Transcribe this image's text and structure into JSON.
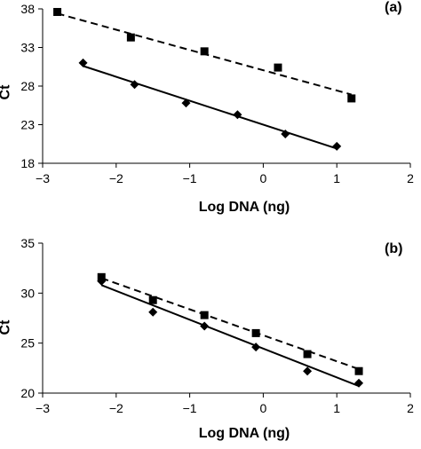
{
  "chart_data": [
    {
      "type": "scatter",
      "panel_label": "(a)",
      "xlabel": "Log DNA (ng)",
      "ylabel": "Ct",
      "xlim": [
        -3,
        2
      ],
      "ylim": [
        18,
        38
      ],
      "xticks": [
        -3,
        -2,
        -1,
        0,
        1,
        2
      ],
      "yticks": [
        18,
        23,
        28,
        33,
        38
      ],
      "tick_labels_x": [
        "−3",
        "−2",
        "−1",
        "0",
        "1",
        "2"
      ],
      "tick_labels_y": [
        "18",
        "23",
        "28",
        "33",
        "38"
      ],
      "grid": false,
      "series": [
        {
          "marker": "square",
          "line": "dashed",
          "x": [
            -2.8,
            -1.8,
            -0.8,
            0.2,
            1.2
          ],
          "y": [
            37.6,
            34.3,
            32.5,
            30.4,
            26.4
          ],
          "fit": [
            [
              -2.8,
              37.4
            ],
            [
              1.2,
              26.9
            ]
          ]
        },
        {
          "marker": "diamond",
          "line": "solid",
          "x": [
            -2.45,
            -1.75,
            -1.05,
            -0.35,
            0.3,
            1.0
          ],
          "y": [
            31.0,
            28.2,
            25.8,
            24.3,
            21.8,
            20.2
          ],
          "fit": [
            [
              -2.45,
              30.6
            ],
            [
              1.0,
              19.9
            ]
          ]
        }
      ]
    },
    {
      "type": "scatter",
      "panel_label": "(b)",
      "xlabel": "Log DNA (ng)",
      "ylabel": "Ct",
      "xlim": [
        -3,
        2
      ],
      "ylim": [
        20,
        35
      ],
      "xticks": [
        -3,
        -2,
        -1,
        0,
        1,
        2
      ],
      "yticks": [
        20,
        25,
        30,
        35
      ],
      "tick_labels_x": [
        "−3",
        "−2",
        "−1",
        "0",
        "1",
        "2"
      ],
      "tick_labels_y": [
        "20",
        "25",
        "30",
        "35"
      ],
      "grid": false,
      "series": [
        {
          "marker": "square",
          "line": "dashed",
          "x": [
            -2.2,
            -1.5,
            -0.8,
            -0.1,
            0.6,
            1.3
          ],
          "y": [
            31.6,
            29.3,
            27.8,
            26.0,
            23.9,
            22.2
          ],
          "fit": [
            [
              -2.2,
              31.5
            ],
            [
              1.3,
              22.4
            ]
          ]
        },
        {
          "marker": "diamond",
          "line": "solid",
          "x": [
            -2.2,
            -1.5,
            -0.8,
            -0.1,
            0.6,
            1.3
          ],
          "y": [
            31.2,
            28.1,
            26.7,
            24.6,
            22.2,
            21.0
          ],
          "fit": [
            [
              -2.2,
              30.8
            ],
            [
              1.3,
              20.7
            ]
          ]
        }
      ]
    }
  ]
}
